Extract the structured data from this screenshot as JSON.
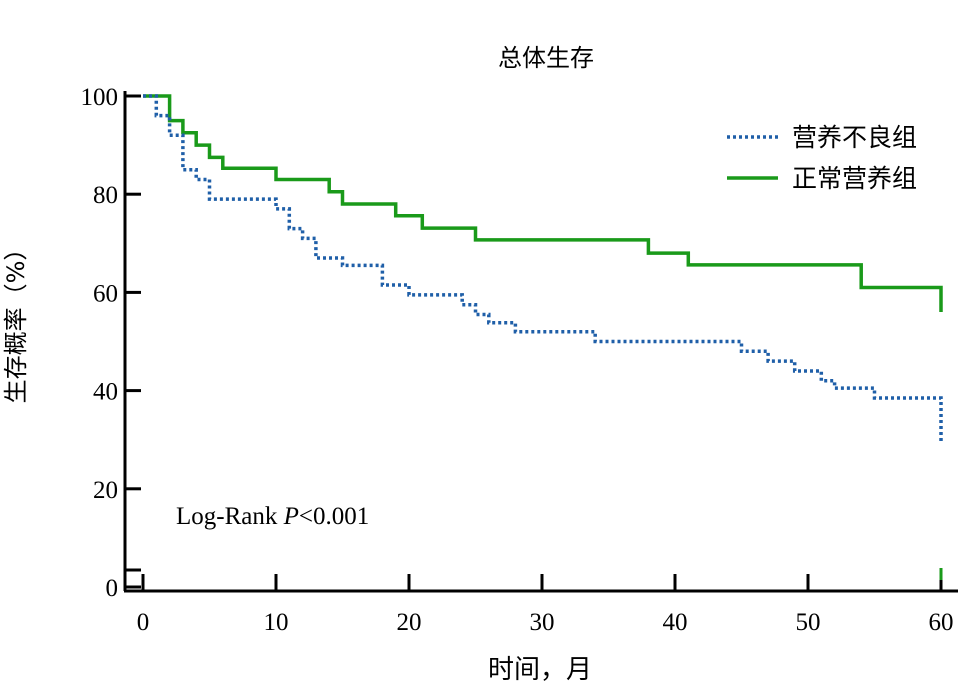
{
  "chart_data": {
    "type": "line",
    "title": "总体生存",
    "xlabel": "时间，月",
    "ylabel": "生存概率（%）",
    "x_ticks": [
      "0",
      "10",
      "20",
      "30",
      "40",
      "50",
      "60"
    ],
    "y_ticks": [
      "0",
      "20",
      "40",
      "60",
      "80",
      "100"
    ],
    "xlim": [
      0,
      60
    ],
    "ylim": [
      0,
      100
    ],
    "annotation": "Log-Rank P<0.001",
    "legend_position": "top-right",
    "grid": false,
    "series": [
      {
        "name": "营养不良组",
        "style": "dotted",
        "color": "#1f5fa8",
        "points": [
          [
            0,
            100
          ],
          [
            1,
            100
          ],
          [
            1,
            96
          ],
          [
            2,
            96
          ],
          [
            2,
            92
          ],
          [
            3,
            92
          ],
          [
            3,
            85
          ],
          [
            4,
            85
          ],
          [
            4,
            83
          ],
          [
            5,
            83
          ],
          [
            5,
            79
          ],
          [
            10,
            79
          ],
          [
            10,
            77
          ],
          [
            11,
            77
          ],
          [
            11,
            73
          ],
          [
            12,
            73
          ],
          [
            12,
            71
          ],
          [
            13,
            71
          ],
          [
            13,
            67
          ],
          [
            15,
            67
          ],
          [
            15,
            65.5
          ],
          [
            18,
            65.5
          ],
          [
            18,
            61.5
          ],
          [
            20,
            61.5
          ],
          [
            20,
            59.5
          ],
          [
            24,
            59.5
          ],
          [
            24,
            57.5
          ],
          [
            25,
            57.5
          ],
          [
            25,
            55.5
          ],
          [
            26,
            55.5
          ],
          [
            26,
            53.8
          ],
          [
            28,
            53.8
          ],
          [
            28,
            52
          ],
          [
            34,
            52
          ],
          [
            34,
            50
          ],
          [
            45,
            50
          ],
          [
            45,
            48
          ],
          [
            47,
            48
          ],
          [
            47,
            46
          ],
          [
            49,
            46
          ],
          [
            49,
            44
          ],
          [
            51,
            44
          ],
          [
            51,
            42
          ],
          [
            52,
            42
          ],
          [
            52,
            40.5
          ],
          [
            55,
            40.5
          ],
          [
            55,
            38.5
          ],
          [
            60,
            38.5
          ],
          [
            60,
            29.5
          ]
        ]
      },
      {
        "name": "正常营养组",
        "style": "solid",
        "color": "#1a9a1a",
        "points": [
          [
            0,
            100
          ],
          [
            2,
            100
          ],
          [
            2,
            95
          ],
          [
            3,
            95
          ],
          [
            3,
            92.5
          ],
          [
            4,
            92.5
          ],
          [
            4,
            90
          ],
          [
            5,
            90
          ],
          [
            5,
            87.5
          ],
          [
            6,
            87.5
          ],
          [
            6,
            85.3
          ],
          [
            10,
            85.3
          ],
          [
            10,
            83
          ],
          [
            14,
            83
          ],
          [
            14,
            80.5
          ],
          [
            15,
            80.5
          ],
          [
            15,
            78
          ],
          [
            19,
            78
          ],
          [
            19,
            75.6
          ],
          [
            21,
            75.6
          ],
          [
            21,
            73.1
          ],
          [
            25,
            73.1
          ],
          [
            25,
            70.7
          ],
          [
            38,
            70.7
          ],
          [
            38,
            68
          ],
          [
            41,
            68
          ],
          [
            41,
            65.6
          ],
          [
            54,
            65.6
          ],
          [
            54,
            61
          ],
          [
            60,
            61
          ],
          [
            60,
            56
          ]
        ]
      }
    ]
  }
}
